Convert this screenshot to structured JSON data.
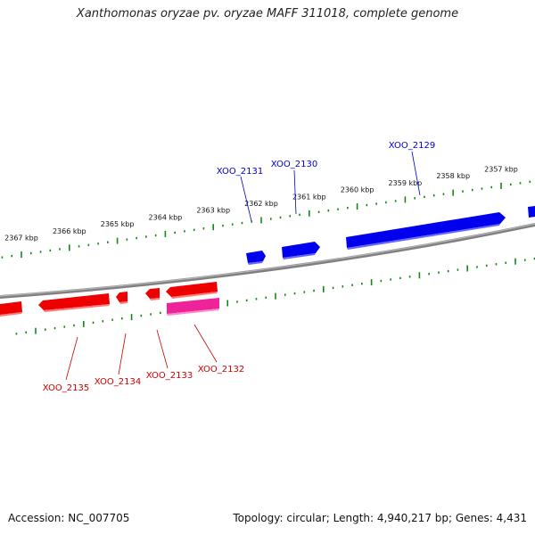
{
  "title": "Xanthomonas oryzae pv. oryzae MAFF 311018, complete genome",
  "footer": {
    "accession": "Accession: NC_007705",
    "summary": "Topology: circular; Length: 4,940,217 bp; Genes: 4,431"
  },
  "colors": {
    "forward_gene": "#0000ee",
    "reverse_gene": "#ee0000",
    "reverse_gene_alt": "#ee2299",
    "tick": "#118811",
    "backbone": "#808080"
  },
  "kbp_labels": [
    {
      "pos": 2357,
      "text": "2357 kbp"
    },
    {
      "pos": 2358,
      "text": "2358 kbp"
    },
    {
      "pos": 2359,
      "text": "2359 kbp"
    },
    {
      "pos": 2360,
      "text": "2360 kbp"
    },
    {
      "pos": 2361,
      "text": "2361 kbp"
    },
    {
      "pos": 2362,
      "text": "2362 kbp"
    },
    {
      "pos": 2363,
      "text": "2363 kbp"
    },
    {
      "pos": 2364,
      "text": "2364 kbp"
    },
    {
      "pos": 2365,
      "text": "2365 kbp"
    },
    {
      "pos": 2366,
      "text": "2366 kbp"
    },
    {
      "pos": 2367,
      "text": "2367 kbp"
    }
  ],
  "genes": [
    {
      "id": "XOO_2129",
      "strand": "+"
    },
    {
      "id": "XOO_2130",
      "strand": "+"
    },
    {
      "id": "XOO_2131",
      "strand": "+"
    },
    {
      "id": "XOO_2132",
      "strand": "-"
    },
    {
      "id": "XOO_2133",
      "strand": "-"
    },
    {
      "id": "XOO_2134",
      "strand": "-"
    },
    {
      "id": "XOO_2135",
      "strand": "-"
    }
  ]
}
